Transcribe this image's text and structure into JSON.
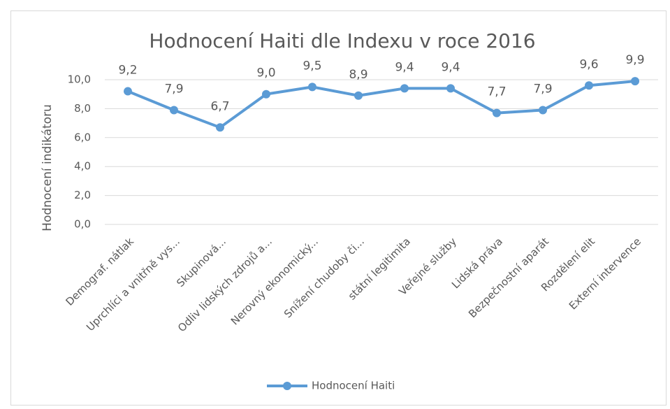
{
  "chart_data": {
    "type": "line",
    "title": "Hodnocení Haiti dle Indexu v roce 2016",
    "y_label": "Hodnocení indikátoru",
    "categories": [
      "Demograf. nátlak",
      "Uprchlíci a vnitřně vys...",
      "Skupinová...",
      "Odliv lidských zdrojů a...",
      "Nerovný ekonomický...",
      "Snížení chudoby či...",
      "státní legitimita",
      "Veřejné služby",
      "Lidská práva",
      "Bezpečnostní aparát",
      "Rozdělení elit",
      "Externí intervence"
    ],
    "series": [
      {
        "name": "Hodnocení Haiti",
        "color": "#5b9bd5",
        "values": [
          9.2,
          7.9,
          6.7,
          9.0,
          9.5,
          8.9,
          9.4,
          9.4,
          7.7,
          7.9,
          9.6,
          9.9
        ],
        "value_labels": [
          "9,2",
          "7,9",
          "6,7",
          "9,0",
          "9,5",
          "8,9",
          "9,4",
          "9,4",
          "7,7",
          "7,9",
          "9,6",
          "9,9"
        ]
      }
    ],
    "ylim": [
      0,
      10
    ],
    "yticks": [
      {
        "value": 0,
        "label": "0,0"
      },
      {
        "value": 2,
        "label": "2,0"
      },
      {
        "value": 4,
        "label": "4,0"
      },
      {
        "value": 6,
        "label": "6,0"
      },
      {
        "value": 8,
        "label": "8,0"
      },
      {
        "value": 10,
        "label": "10,0"
      }
    ],
    "grid": true,
    "legend": "bottom"
  }
}
